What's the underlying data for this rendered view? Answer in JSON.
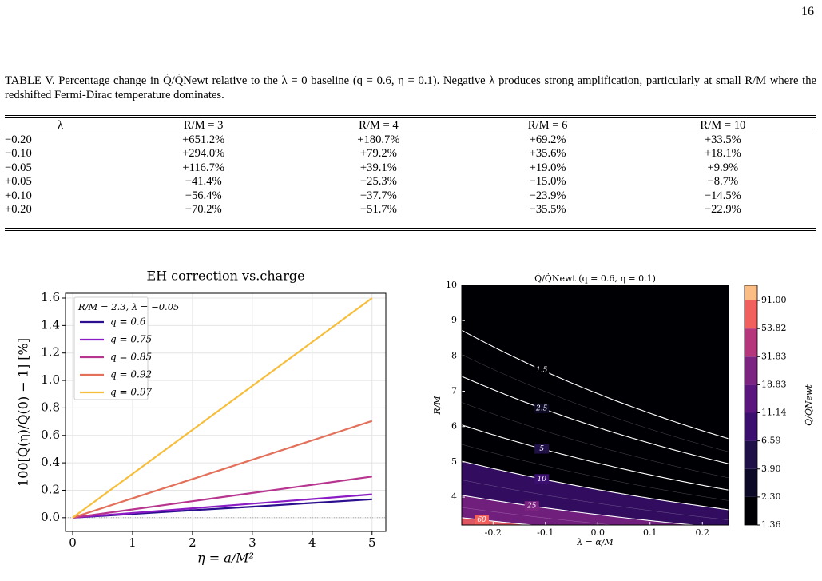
{
  "page_number": "16",
  "table": {
    "caption": "TABLE V. Percentage change in Q̇/Q̇Newt relative to the λ = 0 baseline (q = 0.6, η = 0.1). Negative λ produces strong amplification, particularly at small R/M where the redshifted Fermi-Dirac temperature dominates.",
    "headers": [
      "λ",
      "R/M = 3",
      "R/M = 4",
      "R/M = 6",
      "R/M = 10"
    ],
    "rows": [
      [
        "−0.20",
        "+651.2%",
        "+180.7%",
        "+69.2%",
        "+33.5%"
      ],
      [
        "−0.10",
        "+294.0%",
        "+79.2%",
        "+35.6%",
        "+18.1%"
      ],
      [
        "−0.05",
        "+116.7%",
        "+39.1%",
        "+19.0%",
        "+9.9%"
      ],
      [
        "+0.05",
        "−41.4%",
        "−25.3%",
        "−15.0%",
        "−8.7%"
      ],
      [
        "+0.10",
        "−56.4%",
        "−37.7%",
        "−23.9%",
        "−14.5%"
      ],
      [
        "+0.20",
        "−70.2%",
        "−51.7%",
        "−35.5%",
        "−22.9%"
      ]
    ]
  },
  "chart_data": [
    {
      "type": "line",
      "title": "EH correction vs.charge",
      "x_label": "η = a/M²",
      "y_label": "100[Q̇(η)/Q̇(0) − 1] [%]",
      "legend_title": "R/M = 2.3, λ = −0.05",
      "x": [
        0,
        1,
        2,
        3,
        4,
        5
      ],
      "series": [
        {
          "name": "q = 0.6",
          "color": "#2b0f8e",
          "values": [
            0,
            0.027,
            0.054,
            0.08,
            0.107,
            0.134
          ]
        },
        {
          "name": "q = 0.75",
          "color": "#8b1bc4",
          "values": [
            0,
            0.034,
            0.068,
            0.102,
            0.136,
            0.17
          ]
        },
        {
          "name": "q = 0.85",
          "color": "#b8358f",
          "values": [
            0,
            0.06,
            0.12,
            0.18,
            0.24,
            0.3
          ]
        },
        {
          "name": "q = 0.92",
          "color": "#e3705a",
          "values": [
            0,
            0.141,
            0.282,
            0.423,
            0.564,
            0.705
          ]
        },
        {
          "name": "q = 0.97",
          "color": "#f6be3c",
          "values": [
            0,
            0.32,
            0.64,
            0.96,
            1.28,
            1.6
          ]
        }
      ],
      "xlim": [
        -0.12,
        5.23
      ],
      "ylim": [
        -0.1,
        1.635
      ],
      "xticks": [
        0,
        1,
        2,
        3,
        4,
        5
      ],
      "yticks": [
        {
          "value": 0,
          "label": "0.0"
        },
        0.2,
        0.4,
        0.6,
        0.8,
        {
          "value": 1,
          "label": "1.0"
        },
        1.2,
        1.4,
        1.6
      ],
      "grid": true
    },
    {
      "type": "contour",
      "title": "Q̇/Q̇Newt (q = 0.6, η = 0.1)",
      "x_label": "λ = α/M",
      "y_label": "R/M",
      "xlim": [
        -0.26,
        0.25
      ],
      "ylim": [
        3.21,
        10
      ],
      "xticks": [
        -0.2,
        -0.1,
        {
          "value": 0,
          "label": "0.0"
        },
        0.1,
        0.2
      ],
      "yticks": [
        4,
        5,
        6,
        7,
        8,
        9,
        10
      ],
      "contour_levels": [
        1.5,
        2.5,
        5,
        10,
        25,
        60
      ],
      "colorbar": {
        "label": "Q̇/Q̇Newt",
        "ticks": [
          1.36,
          {
            "value": 2.3,
            "label": "2.30"
          },
          {
            "value": 3.9,
            "label": "3.90"
          },
          6.59,
          11.14,
          18.83,
          31.83,
          53.82,
          {
            "value": 91,
            "label": "91.00"
          }
        ],
        "colors": [
          "#000004",
          "#0c0926",
          "#1f1148",
          "#3b0f70",
          "#5a167e",
          "#7d2382",
          "#b5367a",
          "#f1605d",
          "#fcbd85"
        ]
      }
    }
  ]
}
